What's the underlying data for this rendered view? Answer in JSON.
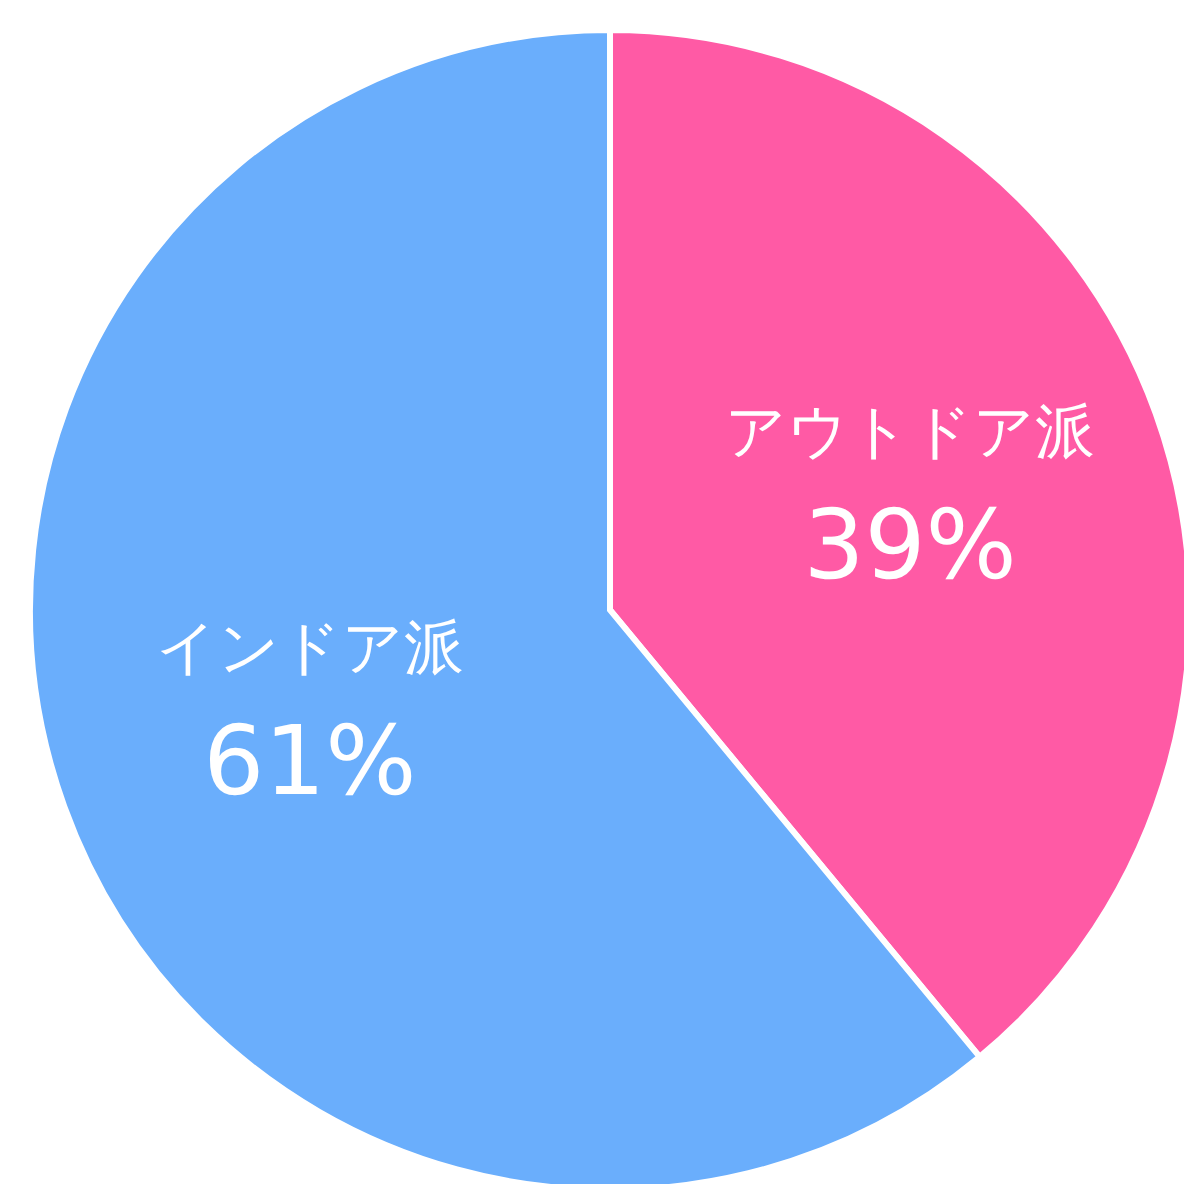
{
  "chart_data": {
    "type": "pie",
    "categories": [
      "アウトドア派",
      "インドア派"
    ],
    "values": [
      39,
      61
    ],
    "colors": [
      "#ff5aa5",
      "#6aaefc"
    ],
    "value_labels": [
      "39%",
      "61%"
    ]
  }
}
